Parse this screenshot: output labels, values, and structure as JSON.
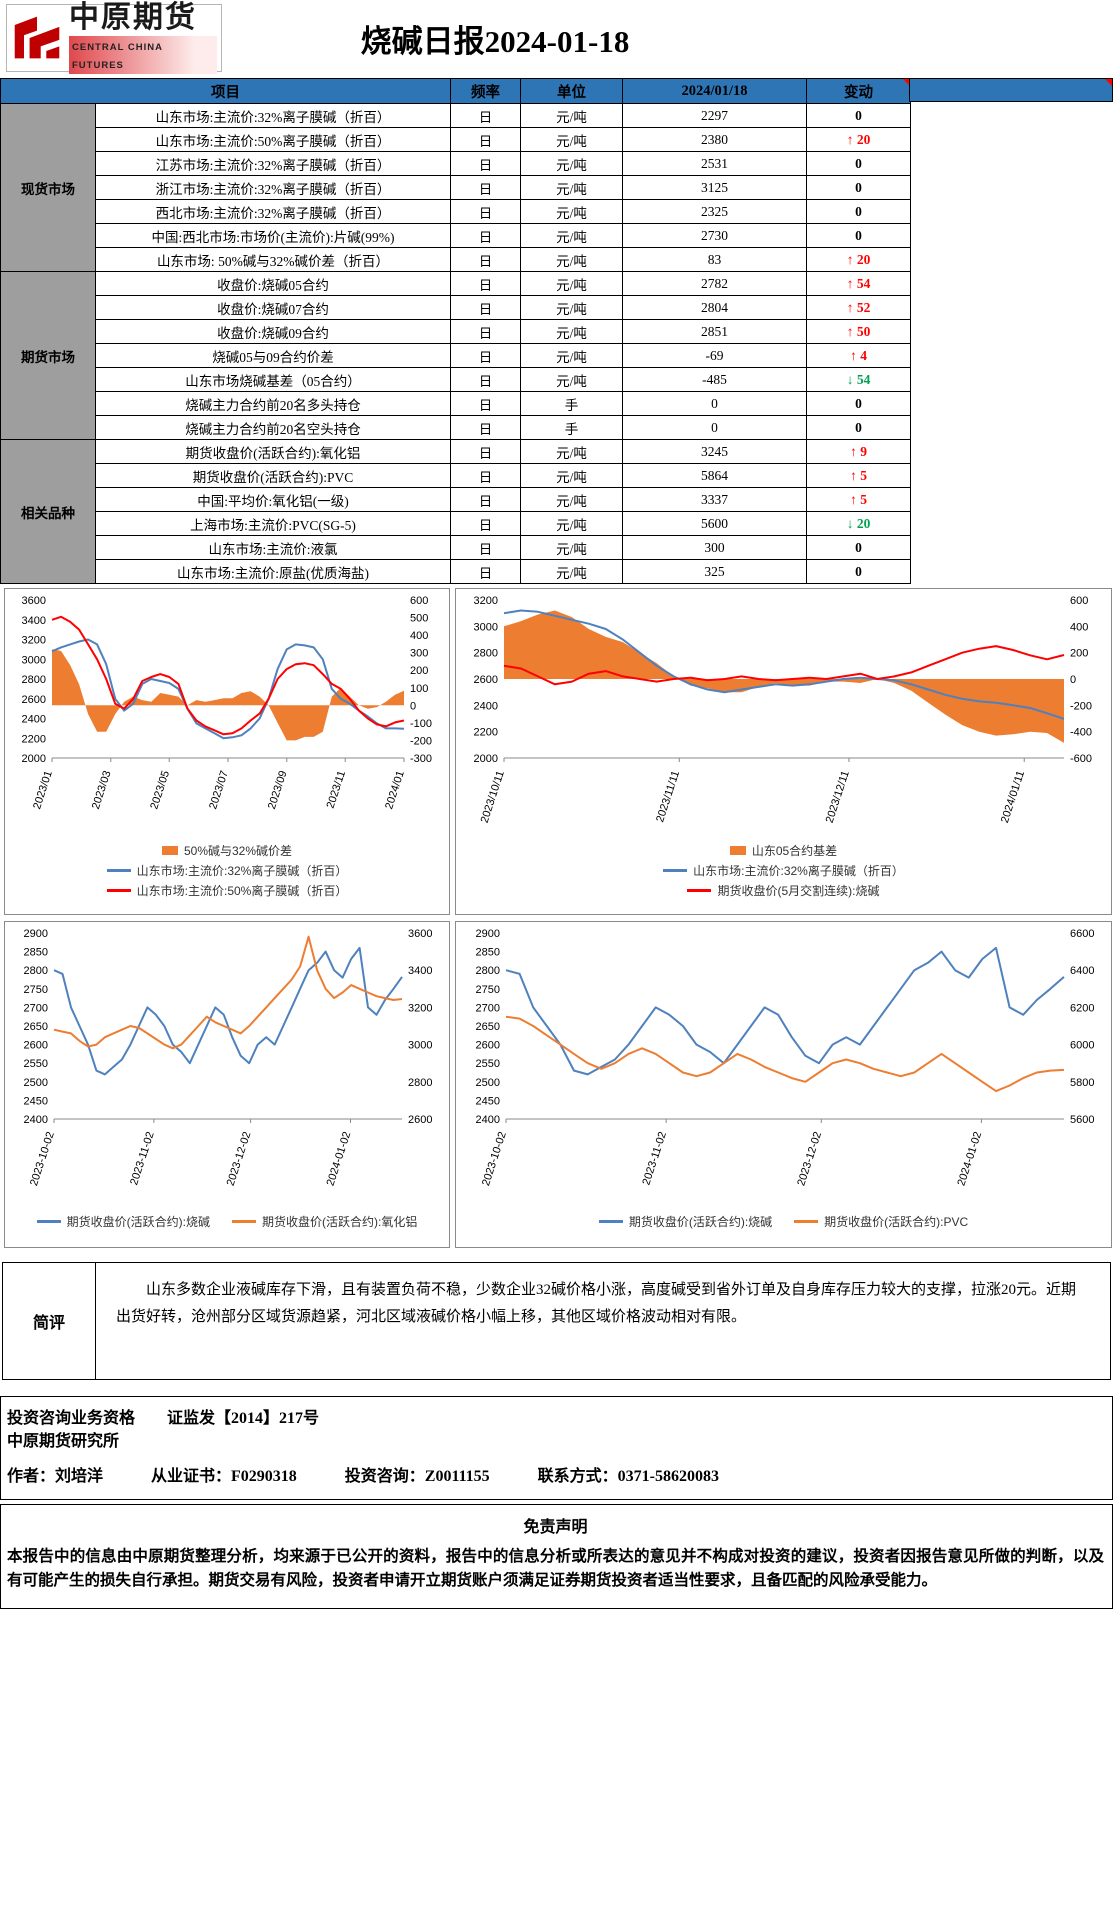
{
  "header": {
    "logo_cn": "中原期货",
    "logo_en": "CENTRAL CHINA FUTURES",
    "title": "烧碱日报2024-01-18"
  },
  "table": {
    "columns": [
      "项目",
      "频率",
      "单位",
      "2024/01/18",
      "变动"
    ],
    "groups": [
      {
        "label": "现货市场",
        "rows": [
          {
            "item": "山东市场:主流价:32%离子膜碱（折百）",
            "freq": "日",
            "unit": "元/吨",
            "value": "2297",
            "change": "0",
            "dir": "flat"
          },
          {
            "item": "山东市场:主流价:50%离子膜碱（折百）",
            "freq": "日",
            "unit": "元/吨",
            "value": "2380",
            "change": "20",
            "dir": "up"
          },
          {
            "item": "江苏市场:主流价:32%离子膜碱（折百）",
            "freq": "日",
            "unit": "元/吨",
            "value": "2531",
            "change": "0",
            "dir": "flat"
          },
          {
            "item": "浙江市场:主流价:32%离子膜碱（折百）",
            "freq": "日",
            "unit": "元/吨",
            "value": "3125",
            "change": "0",
            "dir": "flat"
          },
          {
            "item": "西北市场:主流价:32%离子膜碱（折百）",
            "freq": "日",
            "unit": "元/吨",
            "value": "2325",
            "change": "0",
            "dir": "flat"
          },
          {
            "item": "中国:西北市场:市场价(主流价):片碱(99%)",
            "freq": "日",
            "unit": "元/吨",
            "value": "2730",
            "change": "0",
            "dir": "flat"
          },
          {
            "item": "山东市场: 50%碱与32%碱价差（折百）",
            "freq": "日",
            "unit": "元/吨",
            "value": "83",
            "change": "20",
            "dir": "up"
          }
        ]
      },
      {
        "label": "期货市场",
        "rows": [
          {
            "item": "收盘价:烧碱05合约",
            "freq": "日",
            "unit": "元/吨",
            "value": "2782",
            "change": "54",
            "dir": "up"
          },
          {
            "item": "收盘价:烧碱07合约",
            "freq": "日",
            "unit": "元/吨",
            "value": "2804",
            "change": "52",
            "dir": "up"
          },
          {
            "item": "收盘价:烧碱09合约",
            "freq": "日",
            "unit": "元/吨",
            "value": "2851",
            "change": "50",
            "dir": "up"
          },
          {
            "item": "烧碱05与09合约价差",
            "freq": "日",
            "unit": "元/吨",
            "value": "-69",
            "change": "4",
            "dir": "up"
          },
          {
            "item": "山东市场烧碱基差（05合约）",
            "freq": "日",
            "unit": "元/吨",
            "value": "-485",
            "change": "54",
            "dir": "down"
          },
          {
            "item": "烧碱主力合约前20名多头持仓",
            "freq": "日",
            "unit": "手",
            "value": "0",
            "change": "0",
            "dir": "flat"
          },
          {
            "item": "烧碱主力合约前20名空头持仓",
            "freq": "日",
            "unit": "手",
            "value": "0",
            "change": "0",
            "dir": "flat"
          }
        ]
      },
      {
        "label": "相关品种",
        "rows": [
          {
            "item": "期货收盘价(活跃合约):氧化铝",
            "freq": "日",
            "unit": "元/吨",
            "value": "3245",
            "change": "9",
            "dir": "up"
          },
          {
            "item": "期货收盘价(活跃合约):PVC",
            "freq": "日",
            "unit": "元/吨",
            "value": "5864",
            "change": "5",
            "dir": "up"
          },
          {
            "item": "中国:平均价:氧化铝(一级)",
            "freq": "日",
            "unit": "元/吨",
            "value": "3337",
            "change": "5",
            "dir": "up"
          },
          {
            "item": "上海市场:主流价:PVC(SG-5)",
            "freq": "日",
            "unit": "元/吨",
            "value": "5600",
            "change": "20",
            "dir": "down"
          },
          {
            "item": "山东市场:主流价:液氯",
            "freq": "日",
            "unit": "元/吨",
            "value": "300",
            "change": "0",
            "dir": "flat"
          },
          {
            "item": "山东市场:主流价:原盐(优质海盐)",
            "freq": "日",
            "unit": "元/吨",
            "value": "325",
            "change": "0",
            "dir": "flat"
          }
        ]
      }
    ]
  },
  "chart_data": [
    {
      "type": "line",
      "title": "",
      "left_axis": {
        "min": 2000,
        "max": 3600,
        "step": 200
      },
      "right_axis": {
        "min": -300,
        "max": 600,
        "step": 100
      },
      "legend_position": "bottom",
      "legend_layout": "stack",
      "grid": false,
      "x_labels": [
        {
          "t": "2023/01",
          "p": 0
        },
        {
          "t": "2023/03",
          "p": 0.167
        },
        {
          "t": "2023/05",
          "p": 0.333
        },
        {
          "t": "2023/07",
          "p": 0.5
        },
        {
          "t": "2023/09",
          "p": 0.667
        },
        {
          "t": "2023/11",
          "p": 0.833
        },
        {
          "t": "2024/01",
          "p": 1
        }
      ],
      "series": [
        {
          "name": "50%碱与32%碱价差",
          "color": "#ED7D31",
          "axis": "right",
          "kind": "area",
          "values": [
            320,
            310,
            230,
            120,
            -50,
            -150,
            -150,
            -50,
            20,
            50,
            30,
            20,
            70,
            60,
            50,
            0,
            30,
            20,
            30,
            40,
            40,
            70,
            80,
            50,
            0,
            -100,
            -200,
            -200,
            -180,
            -180,
            -150,
            50,
            100,
            50,
            0,
            -20,
            -10,
            20,
            60,
            83
          ]
        },
        {
          "name": "山东市场:主流价:32%离子膜碱（折百）",
          "color": "#4E81BD",
          "axis": "left",
          "kind": "line",
          "values": [
            3080,
            3120,
            3150,
            3180,
            3200,
            3150,
            2950,
            2600,
            2480,
            2550,
            2750,
            2800,
            2780,
            2760,
            2700,
            2500,
            2350,
            2300,
            2250,
            2200,
            2210,
            2230,
            2300,
            2400,
            2600,
            2900,
            3100,
            3150,
            3140,
            3120,
            3000,
            2700,
            2600,
            2550,
            2480,
            2420,
            2350,
            2300,
            2300,
            2297
          ]
        },
        {
          "name": "山东市场:主流价:50%离子膜碱（折百）",
          "color": "#FF0000",
          "axis": "left",
          "kind": "line",
          "values": [
            3400,
            3430,
            3380,
            3300,
            3150,
            3000,
            2800,
            2550,
            2500,
            2600,
            2780,
            2820,
            2850,
            2820,
            2750,
            2500,
            2380,
            2320,
            2280,
            2240,
            2250,
            2300,
            2380,
            2450,
            2600,
            2800,
            2900,
            2950,
            2960,
            2940,
            2850,
            2750,
            2700,
            2600,
            2480,
            2400,
            2340,
            2320,
            2360,
            2380
          ]
        }
      ]
    },
    {
      "type": "line",
      "title": "",
      "left_axis": {
        "min": 2000,
        "max": 3200,
        "step": 200
      },
      "right_axis": {
        "min": -600,
        "max": 600,
        "step": 200
      },
      "legend_position": "bottom",
      "legend_layout": "stack",
      "grid": false,
      "x_labels": [
        {
          "t": "2023/10/11",
          "p": 0
        },
        {
          "t": "2023/11/11",
          "p": 0.313
        },
        {
          "t": "2023/12/11",
          "p": 0.616
        },
        {
          "t": "2024/01/11",
          "p": 0.929
        }
      ],
      "series": [
        {
          "name": "山东05合约基差",
          "color": "#ED7D31",
          "axis": "right",
          "kind": "area",
          "values": [
            400,
            440,
            490,
            520,
            470,
            380,
            320,
            280,
            200,
            120,
            20,
            -50,
            -70,
            -100,
            -100,
            -60,
            -30,
            -50,
            -50,
            -20,
            -20,
            -30,
            0,
            -30,
            -90,
            -180,
            -270,
            -350,
            -400,
            -430,
            -420,
            -400,
            -410,
            -485
          ]
        },
        {
          "name": "山东市场:主流价:32%离子膜碱（折百）",
          "color": "#4E81BD",
          "axis": "left",
          "kind": "line",
          "values": [
            3100,
            3120,
            3110,
            3080,
            3050,
            3020,
            2980,
            2900,
            2800,
            2700,
            2620,
            2560,
            2520,
            2500,
            2520,
            2540,
            2560,
            2550,
            2560,
            2580,
            2600,
            2610,
            2600,
            2590,
            2560,
            2520,
            2480,
            2450,
            2430,
            2420,
            2400,
            2380,
            2340,
            2297
          ]
        },
        {
          "name": "期货收盘价(5月交割连续):烧碱",
          "color": "#FF0000",
          "axis": "left",
          "kind": "line",
          "values": [
            2700,
            2680,
            2620,
            2560,
            2580,
            2640,
            2660,
            2620,
            2600,
            2580,
            2600,
            2610,
            2590,
            2600,
            2620,
            2600,
            2590,
            2600,
            2610,
            2600,
            2620,
            2640,
            2600,
            2620,
            2650,
            2700,
            2750,
            2800,
            2830,
            2850,
            2820,
            2780,
            2750,
            2782
          ]
        }
      ]
    },
    {
      "type": "line",
      "title": "",
      "left_axis": {
        "min": 2400,
        "max": 2900,
        "step": 50
      },
      "right_axis": {
        "min": 2600,
        "max": 3600,
        "step": 200
      },
      "legend_position": "bottom",
      "legend_layout": "row",
      "grid": false,
      "x_labels": [
        {
          "t": "2023-10-02",
          "p": 0
        },
        {
          "t": "2023-11-02",
          "p": 0.287
        },
        {
          "t": "2023-12-02",
          "p": 0.565
        },
        {
          "t": "2024-01-02",
          "p": 0.852
        }
      ],
      "series": [
        {
          "name": "期货收盘价(活跃合约):烧碱",
          "color": "#4E81BD",
          "axis": "left",
          "kind": "line",
          "values": [
            2800,
            2790,
            2700,
            2650,
            2600,
            2530,
            2520,
            2540,
            2560,
            2600,
            2650,
            2700,
            2680,
            2650,
            2600,
            2580,
            2550,
            2600,
            2650,
            2700,
            2680,
            2620,
            2570,
            2550,
            2600,
            2620,
            2600,
            2650,
            2700,
            2750,
            2800,
            2820,
            2850,
            2800,
            2780,
            2830,
            2860,
            2700,
            2680,
            2720,
            2750,
            2782
          ]
        },
        {
          "name": "期货收盘价(活跃合约):氧化铝",
          "color": "#ED7D31",
          "axis": "right",
          "kind": "line",
          "values": [
            3080,
            3070,
            3060,
            3020,
            2990,
            3000,
            3040,
            3060,
            3080,
            3100,
            3090,
            3060,
            3030,
            3000,
            2980,
            3000,
            3050,
            3100,
            3150,
            3120,
            3100,
            3080,
            3060,
            3100,
            3150,
            3200,
            3250,
            3300,
            3350,
            3420,
            3580,
            3400,
            3300,
            3250,
            3280,
            3320,
            3300,
            3280,
            3260,
            3250,
            3240,
            3245
          ]
        }
      ]
    },
    {
      "type": "line",
      "title": "",
      "left_axis": {
        "min": 2400,
        "max": 2900,
        "step": 50
      },
      "right_axis": {
        "min": 5600,
        "max": 6600,
        "step": 200
      },
      "legend_position": "bottom",
      "legend_layout": "row",
      "grid": false,
      "x_labels": [
        {
          "t": "2023-10-02",
          "p": 0
        },
        {
          "t": "2023-11-02",
          "p": 0.287
        },
        {
          "t": "2023-12-02",
          "p": 0.565
        },
        {
          "t": "2024-01-02",
          "p": 0.852
        }
      ],
      "series": [
        {
          "name": "期货收盘价(活跃合约):烧碱",
          "color": "#4E81BD",
          "axis": "left",
          "kind": "line",
          "values": [
            2800,
            2790,
            2700,
            2650,
            2600,
            2530,
            2520,
            2540,
            2560,
            2600,
            2650,
            2700,
            2680,
            2650,
            2600,
            2580,
            2550,
            2600,
            2650,
            2700,
            2680,
            2620,
            2570,
            2550,
            2600,
            2620,
            2600,
            2650,
            2700,
            2750,
            2800,
            2820,
            2850,
            2800,
            2780,
            2830,
            2860,
            2700,
            2680,
            2720,
            2750,
            2782
          ]
        },
        {
          "name": "期货收盘价(活跃合约):PVC",
          "color": "#ED7D31",
          "axis": "right",
          "kind": "line",
          "values": [
            6150,
            6140,
            6100,
            6050,
            6000,
            5950,
            5900,
            5870,
            5900,
            5950,
            5980,
            5950,
            5900,
            5850,
            5830,
            5850,
            5900,
            5950,
            5920,
            5880,
            5850,
            5820,
            5800,
            5850,
            5900,
            5920,
            5900,
            5870,
            5850,
            5830,
            5850,
            5900,
            5950,
            5900,
            5850,
            5800,
            5750,
            5780,
            5820,
            5850,
            5860,
            5864
          ]
        }
      ]
    }
  ],
  "comment": {
    "label": "简评",
    "text": "山东多数企业液碱库存下滑，且有装置负荷不稳，少数企业32碱价格小涨，高度碱受到省外订单及自身库存压力较大的支撑，拉涨20元。近期出货好转，沧州部分区域货源趋紧，河北区域液碱价格小幅上移，其他区域价格波动相对有限。"
  },
  "credentials": {
    "line1": "投资咨询业务资格　　证监发【2014】217号",
    "line2": "中原期货研究所",
    "line3": "作者：刘培洋　　　从业证书：F0290318　　　投资咨询：Z0011155　　　联系方式：0371-58620083"
  },
  "disclaimer": {
    "title": "免责声明",
    "text": "本报告中的信息由中原期货整理分析，均来源于已公开的资料，报告中的信息分析或所表达的意见并不构成对投资的建议，投资者因报告意见所做的判断，以及有可能产生的损失自行承担。期货交易有风险，投资者申请开立期货账户须满足证券期货投资者适当性要求，且备匹配的风险承受能力。"
  },
  "colors": {
    "table_header_blue": "#2E75B6",
    "group_gray": "#9E9E9E",
    "up_red": "#FF0000",
    "down_green": "#00A050",
    "line_blue": "#4E81BD",
    "line_red": "#FF0000",
    "area_orange": "#ED7D31",
    "logo_red": "#C00000"
  }
}
